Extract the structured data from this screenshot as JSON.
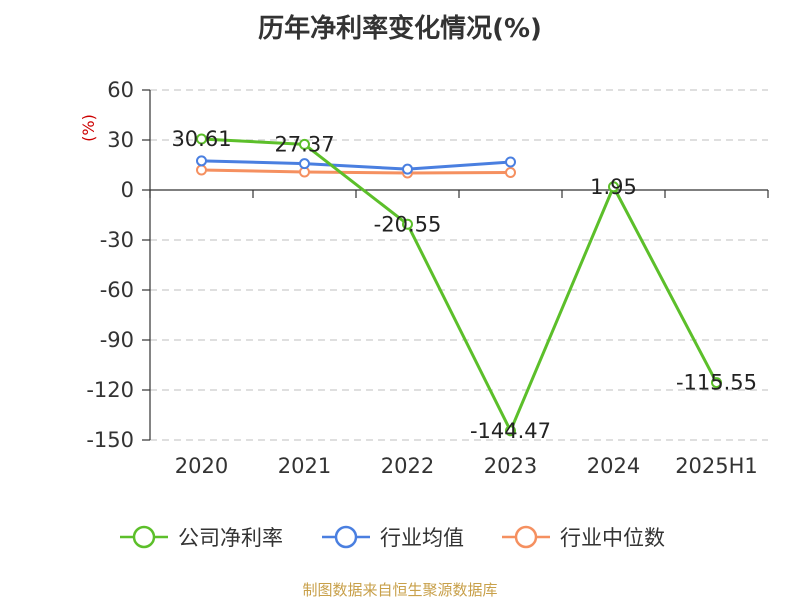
{
  "chart_data": {
    "type": "line",
    "title": "历年净利率变化情况(%)",
    "ylabel": "(%)",
    "categories": [
      "2020",
      "2021",
      "2022",
      "2023",
      "2024",
      "2025H1"
    ],
    "ylim": [
      -150,
      60
    ],
    "yticks": [
      60,
      30,
      0,
      -30,
      -60,
      -90,
      -120,
      -150
    ],
    "grid": true,
    "legend_position": "bottom",
    "series": [
      {
        "name": "公司净利率",
        "color": "#5cbf2a",
        "values": [
          30.61,
          27.37,
          -20.55,
          -144.47,
          1.95,
          -115.55
        ],
        "labels": [
          "30.61",
          "27.37",
          "-20.55",
          "-144.47",
          "1.95",
          "-115.55"
        ]
      },
      {
        "name": "行业均值",
        "color": "#4a7fe0",
        "values": [
          17.5,
          15.8,
          12.5,
          16.8,
          null,
          null
        ]
      },
      {
        "name": "行业中位数",
        "color": "#f59060",
        "values": [
          12.0,
          10.8,
          10.2,
          10.5,
          null,
          null
        ]
      }
    ]
  },
  "source": "制图数据来自恒生聚源数据库"
}
